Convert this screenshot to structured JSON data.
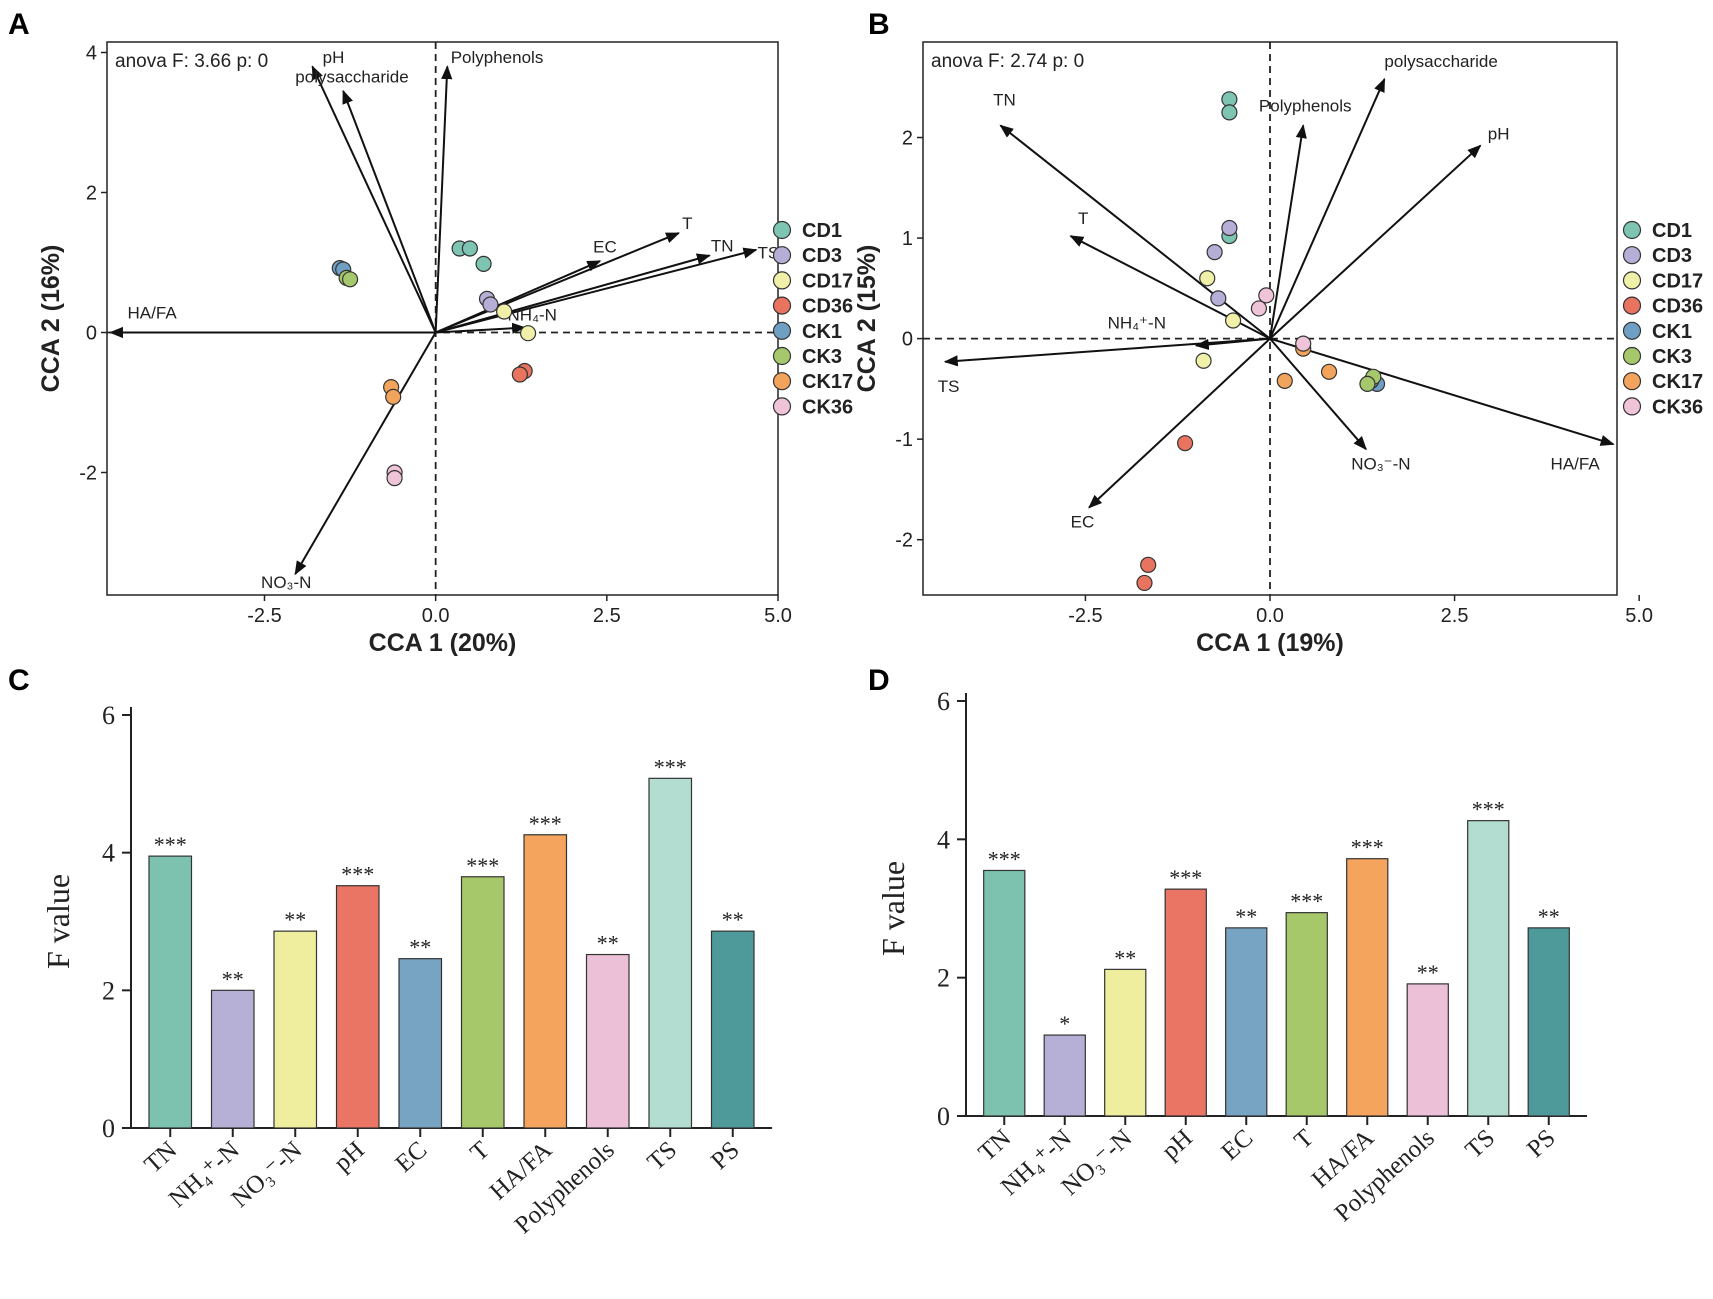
{
  "palette": {
    "CD1": "#7dc4b2",
    "CD3": "#b6aed6",
    "CD17": "#f0f0a8",
    "CD36": "#e8735f",
    "CK1": "#6f9fc2",
    "CK3": "#a6c86c",
    "CK17": "#f3a45c",
    "CK36": "#efc3d8",
    "TN": "#7cc2ae",
    "NH4N": "#b7b0d6",
    "NO3N": "#eeee9e",
    "pH": "#eb7564",
    "EC": "#78a4c4",
    "T": "#a6c86a",
    "HAFA": "#f4a45c",
    "Polyphenols": "#ecc0d6",
    "TS": "#b3ddd0",
    "PS": "#4e9a9a"
  },
  "chart_data": [
    {
      "panel": "A",
      "type": "scatter",
      "annotation": "anova F: 3.66 p: 0",
      "xlabel": "CCA 1 (20%)",
      "ylabel": "CCA 2 (16%)",
      "xlim": [
        -4.8,
        5.0
      ],
      "ylim": [
        -3.75,
        4.15
      ],
      "xticks": [
        -2.5,
        0.0,
        2.5,
        5.0
      ],
      "xtick_labels": [
        "-2.5",
        "0.0",
        "2.5",
        "5.0"
      ],
      "yticks": [
        -2,
        0,
        2,
        4
      ],
      "ytick_labels": [
        "-2",
        "0",
        "2",
        "4"
      ],
      "legend": [
        "CD1",
        "CD3",
        "CD17",
        "CD36",
        "CK1",
        "CK3",
        "CK17",
        "CK36"
      ],
      "points": [
        {
          "g": "CD1",
          "x": 0.35,
          "y": 1.2
        },
        {
          "g": "CD1",
          "x": 0.5,
          "y": 1.2
        },
        {
          "g": "CD1",
          "x": 0.7,
          "y": 0.98
        },
        {
          "g": "CD3",
          "x": 0.75,
          "y": 0.48
        },
        {
          "g": "CD3",
          "x": 0.8,
          "y": 0.4
        },
        {
          "g": "CD17",
          "x": 1.0,
          "y": 0.3
        },
        {
          "g": "CD17",
          "x": 1.35,
          "y": -0.01
        },
        {
          "g": "CD36",
          "x": 1.3,
          "y": -0.55
        },
        {
          "g": "CD36",
          "x": 1.23,
          "y": -0.6
        },
        {
          "g": "CK1",
          "x": -1.4,
          "y": 0.92
        },
        {
          "g": "CK1",
          "x": -1.35,
          "y": 0.9
        },
        {
          "g": "CK3",
          "x": -1.3,
          "y": 0.78
        },
        {
          "g": "CK3",
          "x": -1.25,
          "y": 0.76
        },
        {
          "g": "CK17",
          "x": -0.65,
          "y": -0.78
        },
        {
          "g": "CK17",
          "x": -0.62,
          "y": -0.92
        },
        {
          "g": "CK36",
          "x": -0.6,
          "y": -2.0
        },
        {
          "g": "CK36",
          "x": -0.6,
          "y": -2.08
        }
      ],
      "vectors": [
        {
          "label": "pH",
          "x": -1.8,
          "y": 3.8,
          "dx": 0.15,
          "dy": 0.05,
          "anchor": "start"
        },
        {
          "label": "polysaccharide",
          "x": -1.35,
          "y": 3.45,
          "dx": -0.7,
          "dy": 0.12,
          "anchor": "start"
        },
        {
          "label": "Polyphenols",
          "x": 0.17,
          "y": 3.8,
          "dx": 0.05,
          "dy": 0.05,
          "anchor": "start"
        },
        {
          "label": "EC",
          "x": 2.4,
          "y": 1.02,
          "dx": -0.1,
          "dy": 0.12,
          "anchor": "start"
        },
        {
          "label": "T",
          "x": 3.55,
          "y": 1.42,
          "dx": 0.05,
          "dy": 0.06,
          "anchor": "start"
        },
        {
          "label": "TN",
          "x": 4.0,
          "y": 1.1,
          "dx": 0.02,
          "dy": 0.06,
          "anchor": "start"
        },
        {
          "label": "TS",
          "x": 4.68,
          "y": 1.18,
          "dx": 0.02,
          "dy": -0.12,
          "anchor": "start"
        },
        {
          "label": "NH₄-N",
          "x": 1.3,
          "y": 0.07,
          "dx": -0.25,
          "dy": 0.1,
          "anchor": "start"
        },
        {
          "label": "HA/FA",
          "x": -4.75,
          "y": 0.0,
          "dx": 0.25,
          "dy": 0.2,
          "anchor": "start"
        },
        {
          "label": "NO₃-N",
          "x": -2.05,
          "y": -3.45,
          "dx": -0.5,
          "dy": -0.2,
          "anchor": "start"
        }
      ]
    },
    {
      "panel": "B",
      "type": "scatter",
      "annotation": "anova F: 2.74 p: 0",
      "xlabel": "CCA 1 (19%)",
      "ylabel": "CCA 2 (15%)",
      "xlim": [
        -4.7,
        4.7
      ],
      "ylim": [
        -2.55,
        2.95
      ],
      "xticks": [
        -2.5,
        0.0,
        2.5,
        5.0
      ],
      "xtick_labels": [
        "-2.5",
        "0.0",
        "2.5",
        "5.0"
      ],
      "yticks": [
        -2,
        -1,
        0,
        1,
        2
      ],
      "ytick_labels": [
        "-2",
        "-1",
        "0",
        "1",
        "2"
      ],
      "legend": [
        "CD1",
        "CD3",
        "CD17",
        "CD36",
        "CK1",
        "CK3",
        "CK17",
        "CK36"
      ],
      "points": [
        {
          "g": "CD1",
          "x": -0.55,
          "y": 2.38
        },
        {
          "g": "CD1",
          "x": -0.55,
          "y": 2.25
        },
        {
          "g": "CD1",
          "x": -0.55,
          "y": 1.02
        },
        {
          "g": "CD3",
          "x": -0.55,
          "y": 1.1
        },
        {
          "g": "CD3",
          "x": -0.75,
          "y": 0.86
        },
        {
          "g": "CD3",
          "x": -0.7,
          "y": 0.4
        },
        {
          "g": "CD17",
          "x": -0.85,
          "y": 0.6
        },
        {
          "g": "CD17",
          "x": -0.5,
          "y": 0.18
        },
        {
          "g": "CD17",
          "x": -0.9,
          "y": -0.22
        },
        {
          "g": "CD36",
          "x": -1.15,
          "y": -1.04
        },
        {
          "g": "CD36",
          "x": -1.65,
          "y": -2.25
        },
        {
          "g": "CD36",
          "x": -1.7,
          "y": -2.43
        },
        {
          "g": "CK1",
          "x": 1.45,
          "y": -0.45
        },
        {
          "g": "CK1",
          "x": 1.37,
          "y": -0.42
        },
        {
          "g": "CK3",
          "x": 1.4,
          "y": -0.38
        },
        {
          "g": "CK3",
          "x": 1.32,
          "y": -0.45
        },
        {
          "g": "CK17",
          "x": 0.2,
          "y": -0.42
        },
        {
          "g": "CK17",
          "x": 0.45,
          "y": -0.1
        },
        {
          "g": "CK17",
          "x": 0.8,
          "y": -0.33
        },
        {
          "g": "CK36",
          "x": -0.05,
          "y": 0.43
        },
        {
          "g": "CK36",
          "x": -0.15,
          "y": 0.3
        },
        {
          "g": "CK36",
          "x": 0.45,
          "y": -0.05
        }
      ],
      "vectors": [
        {
          "label": "TN",
          "x": -3.65,
          "y": 2.12,
          "dx": -0.1,
          "dy": 0.2,
          "anchor": "start"
        },
        {
          "label": "T",
          "x": -2.7,
          "y": 1.02,
          "dx": 0.1,
          "dy": 0.12,
          "anchor": "start"
        },
        {
          "label": "NH₄⁺-N",
          "x": -1.0,
          "y": -0.07,
          "dx": -1.2,
          "dy": 0.17,
          "anchor": "start"
        },
        {
          "label": "TS",
          "x": -4.4,
          "y": -0.23,
          "dx": -0.1,
          "dy": -0.3,
          "anchor": "start"
        },
        {
          "label": "EC",
          "x": -2.45,
          "y": -1.68,
          "dx": -0.25,
          "dy": -0.2,
          "anchor": "start"
        },
        {
          "label": "NO₃⁻-N",
          "x": 1.3,
          "y": -1.1,
          "dx": -0.2,
          "dy": -0.2,
          "anchor": "start"
        },
        {
          "label": "HA/FA",
          "x": 4.65,
          "y": -1.05,
          "dx": -0.85,
          "dy": -0.25,
          "anchor": "start"
        },
        {
          "label": "pH",
          "x": 2.85,
          "y": 1.92,
          "dx": 0.1,
          "dy": 0.06,
          "anchor": "start"
        },
        {
          "label": "polysaccharide",
          "x": 1.55,
          "y": 2.58,
          "dx": 0.0,
          "dy": 0.12,
          "anchor": "start"
        },
        {
          "label": "Polyphenols",
          "x": 0.45,
          "y": 2.12,
          "dx": -0.6,
          "dy": 0.14,
          "anchor": "start"
        }
      ]
    },
    {
      "panel": "C",
      "type": "bar",
      "ylabel": "F value",
      "ylim": [
        0,
        6
      ],
      "yticks": [
        0,
        2,
        4,
        6
      ],
      "ytick_labels": [
        "0",
        "2",
        "4",
        "6"
      ],
      "categories": [
        "TN",
        "NH₄⁺-N",
        "NO₃⁻-N",
        "pH",
        "EC",
        "T",
        "HA/FA",
        "Polyphenols",
        "TS",
        "PS"
      ],
      "color_keys": [
        "TN",
        "NH4N",
        "NO3N",
        "pH",
        "EC",
        "T",
        "HAFA",
        "Polyphenols",
        "TS",
        "PS"
      ],
      "values": [
        3.95,
        2.0,
        2.86,
        3.52,
        2.46,
        3.65,
        4.26,
        2.52,
        5.08,
        2.86
      ],
      "significance": [
        "***",
        "**",
        "**",
        "***",
        "**",
        "***",
        "***",
        "**",
        "***",
        "**"
      ]
    },
    {
      "panel": "D",
      "type": "bar",
      "ylabel": "F value",
      "ylim": [
        0,
        6
      ],
      "yticks": [
        0,
        2,
        4,
        6
      ],
      "ytick_labels": [
        "0",
        "2",
        "4",
        "6"
      ],
      "categories": [
        "TN",
        "NH₄⁺-N",
        "NO₃⁻-N",
        "pH",
        "EC",
        "T",
        "HA/FA",
        "Polyphenols",
        "TS",
        "PS"
      ],
      "color_keys": [
        "TN",
        "NH4N",
        "NO3N",
        "pH",
        "EC",
        "T",
        "HAFA",
        "Polyphenols",
        "TS",
        "PS"
      ],
      "values": [
        3.55,
        1.17,
        2.12,
        3.28,
        2.72,
        2.94,
        3.72,
        1.91,
        4.27,
        2.72
      ],
      "significance": [
        "***",
        "*",
        "**",
        "***",
        "**",
        "***",
        "***",
        "**",
        "***",
        "**"
      ]
    }
  ]
}
